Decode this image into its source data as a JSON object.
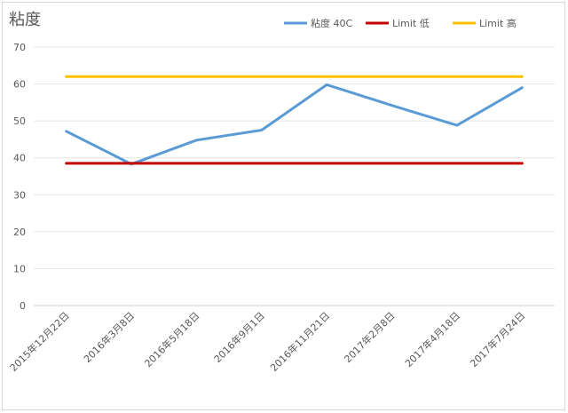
{
  "chart_data": {
    "type": "line",
    "title": "粘度",
    "xlabel": "",
    "ylabel": "",
    "categories": [
      "2015年12月22日",
      "2016年3月8日",
      "2016年5月18日",
      "2016年9月1日",
      "2016年11月21日",
      "2017年2月8日",
      "2017年4月18日",
      "2017年7月24日"
    ],
    "ylim": [
      0,
      70
    ],
    "yticks": [
      0,
      10,
      20,
      30,
      40,
      50,
      60,
      70
    ],
    "grid": true,
    "legend_position": "top-right",
    "series": [
      {
        "name": "粘度 40C",
        "color": "#5b9bd5",
        "values": [
          47.2,
          38.3,
          44.8,
          47.5,
          59.8,
          54.2,
          48.8,
          59
        ]
      },
      {
        "name": "Limit 低",
        "color": "#c00000",
        "values": [
          38.5,
          38.5,
          38.5,
          38.5,
          38.5,
          38.5,
          38.5,
          38.5
        ]
      },
      {
        "name": "Limit 高",
        "color": "#ffc000",
        "values": [
          62,
          62,
          62,
          62,
          62,
          62,
          62,
          62
        ]
      }
    ]
  }
}
